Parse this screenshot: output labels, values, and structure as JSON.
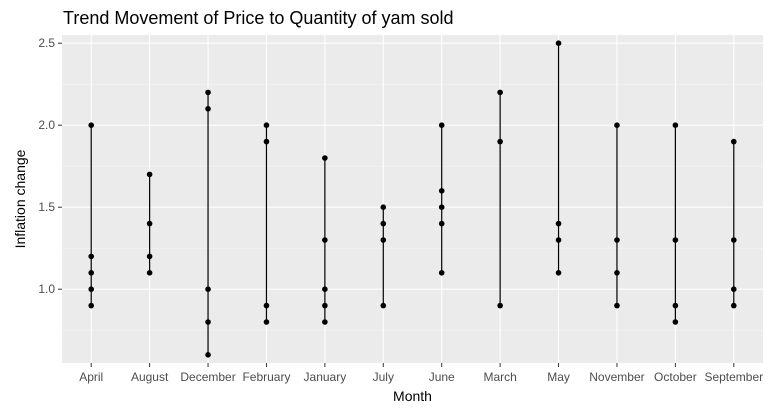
{
  "chart_data": {
    "type": "scatter",
    "title": "Trend Movement of Price to Quantity of yam sold",
    "xlabel": "Month",
    "ylabel": "Inflation change",
    "categories": [
      "April",
      "August",
      "December",
      "February",
      "January",
      "July",
      "June",
      "March",
      "May",
      "November",
      "October",
      "September"
    ],
    "ylim": [
      0.55,
      2.55
    ],
    "yticks": [
      1.0,
      1.5,
      2.0,
      2.5
    ],
    "ytick_labels": [
      "1.0",
      "1.5",
      "2.0",
      "2.5"
    ],
    "grid": true,
    "legend": "none",
    "points": {
      "April": [
        0.9,
        1.0,
        1.1,
        1.2,
        2.0
      ],
      "August": [
        1.1,
        1.2,
        1.4,
        1.7
      ],
      "December": [
        0.6,
        0.8,
        1.0,
        2.1,
        2.2
      ],
      "February": [
        0.8,
        0.9,
        1.9,
        2.0
      ],
      "January": [
        0.8,
        0.9,
        1.0,
        1.3,
        1.8
      ],
      "July": [
        0.9,
        1.3,
        1.4,
        1.5
      ],
      "June": [
        1.1,
        1.4,
        1.5,
        1.6,
        2.0
      ],
      "March": [
        0.9,
        1.9,
        2.2
      ],
      "May": [
        1.1,
        1.3,
        1.4,
        2.5
      ],
      "November": [
        0.9,
        1.1,
        1.3,
        2.0
      ],
      "October": [
        0.8,
        0.9,
        1.3,
        2.0
      ],
      "September": [
        0.9,
        1.0,
        1.3,
        1.9
      ]
    },
    "colors": {
      "panel": "#ebebeb",
      "grid_major": "#ffffff",
      "grid_minor": "#f5f5f5",
      "mark": "#000000",
      "tick_text": "#4d4d4d"
    }
  }
}
